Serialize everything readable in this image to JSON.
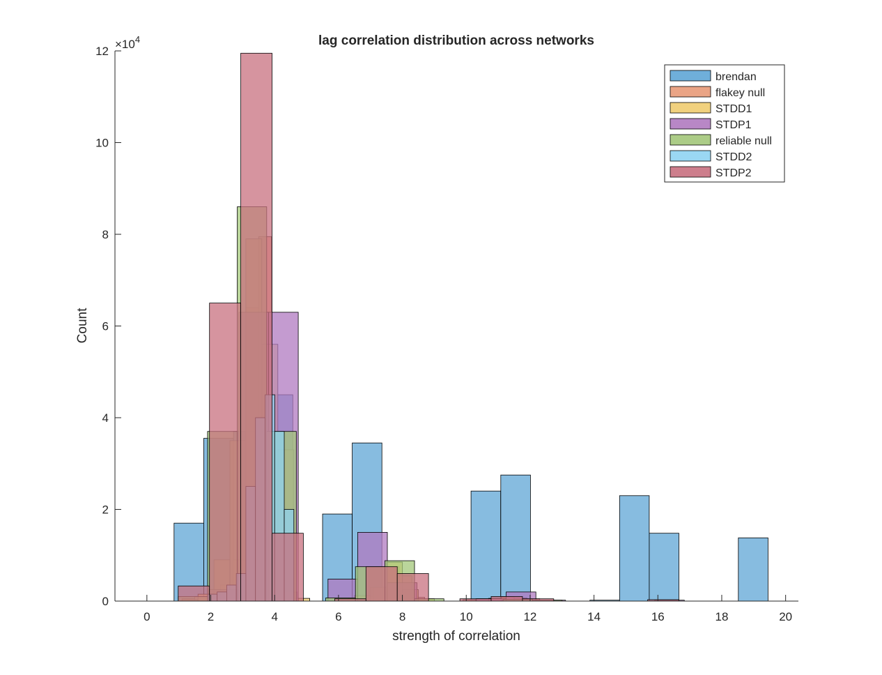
{
  "chart_data": {
    "type": "bar",
    "title": "lag correlation distribution across networks",
    "xlabel": "strength of correlation",
    "ylabel": "Count",
    "y_exponent_label": "×10",
    "y_exponent_power": "4",
    "xlim": [
      -1,
      20.4
    ],
    "ylim": [
      0,
      120000
    ],
    "xticks": [
      0,
      2,
      4,
      6,
      8,
      10,
      12,
      14,
      16,
      18,
      20
    ],
    "yticks": [
      0,
      20000,
      40000,
      60000,
      80000,
      100000,
      120000
    ],
    "xtick_labels": [
      "0",
      "2",
      "4",
      "6",
      "8",
      "10",
      "12",
      "14",
      "16",
      "18",
      "20"
    ],
    "ytick_labels": [
      "0",
      "2",
      "4",
      "6",
      "8",
      "10",
      "12"
    ],
    "legend_position": "top-right",
    "series": [
      {
        "name": "brendan",
        "color": "#0072BD",
        "face": "#5fa6d6",
        "bins": [
          [
            0.0,
            0.8,
            0
          ],
          [
            0.85,
            1.78,
            17000
          ],
          [
            1.78,
            2.71,
            35500
          ],
          [
            2.71,
            3.64,
            37000
          ],
          [
            3.64,
            4.57,
            45000
          ],
          [
            4.57,
            5.5,
            0
          ],
          [
            5.5,
            6.43,
            19000
          ],
          [
            6.43,
            7.36,
            34500
          ],
          [
            7.36,
            8.29,
            0
          ],
          [
            8.29,
            9.22,
            0
          ],
          [
            9.22,
            10.15,
            0
          ],
          [
            10.15,
            11.08,
            24000
          ],
          [
            11.08,
            12.01,
            27500
          ],
          [
            12.01,
            12.94,
            0
          ],
          [
            12.94,
            13.87,
            0
          ],
          [
            13.87,
            14.8,
            200
          ],
          [
            14.8,
            15.73,
            23000
          ],
          [
            15.73,
            16.66,
            14800
          ],
          [
            16.66,
            17.59,
            0
          ],
          [
            17.59,
            18.52,
            0
          ],
          [
            18.52,
            19.45,
            13800
          ]
        ]
      },
      {
        "name": "flakey null",
        "color": "#D95319",
        "face": "#e89a78",
        "bins": [
          [
            1.1,
            1.5,
            500
          ],
          [
            1.5,
            1.9,
            1000
          ],
          [
            1.9,
            2.3,
            1200
          ],
          [
            2.3,
            2.7,
            3500
          ],
          [
            2.7,
            3.1,
            9000
          ],
          [
            3.1,
            3.5,
            64000
          ],
          [
            3.5,
            3.9,
            79500
          ],
          [
            3.9,
            4.3,
            29000
          ],
          [
            4.3,
            4.7,
            2000
          ],
          [
            4.7,
            5.1,
            0
          ],
          [
            5.9,
            6.3,
            300
          ],
          [
            6.3,
            6.7,
            600
          ],
          [
            6.7,
            7.1,
            1000
          ],
          [
            7.1,
            7.5,
            3000
          ],
          [
            7.5,
            7.9,
            7500
          ],
          [
            7.9,
            8.3,
            5500
          ],
          [
            8.3,
            8.7,
            800
          ],
          [
            9.9,
            10.3,
            300
          ],
          [
            10.3,
            10.7,
            500
          ],
          [
            10.7,
            11.1,
            600
          ],
          [
            11.1,
            11.5,
            900
          ],
          [
            11.5,
            11.9,
            700
          ],
          [
            11.9,
            12.3,
            500
          ]
        ]
      },
      {
        "name": "STDD1",
        "color": "#EDB120",
        "face": "#f0cc70",
        "bins": [
          [
            1.1,
            1.6,
            300
          ],
          [
            1.6,
            2.1,
            1500
          ],
          [
            2.1,
            2.6,
            9000
          ],
          [
            2.6,
            3.1,
            35000
          ],
          [
            3.1,
            3.6,
            79000
          ],
          [
            3.6,
            4.1,
            56000
          ],
          [
            4.1,
            4.6,
            33000
          ],
          [
            4.6,
            5.1,
            600
          ],
          [
            6.0,
            6.5,
            300
          ],
          [
            6.5,
            7.0,
            1200
          ],
          [
            7.0,
            7.5,
            3000
          ],
          [
            7.5,
            8.0,
            8500
          ],
          [
            8.0,
            8.5,
            2500
          ],
          [
            8.5,
            9.0,
            500
          ]
        ]
      },
      {
        "name": "STDP1",
        "color": "#7E2F8E",
        "face": "#b07ac0",
        "bins": [
          [
            1.95,
            2.88,
            2500
          ],
          [
            2.88,
            3.81,
            63000
          ],
          [
            3.81,
            4.74,
            63000
          ],
          [
            4.74,
            5.67,
            0
          ],
          [
            5.67,
            6.6,
            4800
          ],
          [
            6.6,
            7.53,
            15000
          ],
          [
            7.53,
            8.46,
            4000
          ],
          [
            8.46,
            9.39,
            0
          ],
          [
            9.39,
            10.32,
            0
          ],
          [
            10.32,
            11.25,
            500
          ],
          [
            11.25,
            12.18,
            2000
          ],
          [
            12.18,
            13.11,
            200
          ],
          [
            13.11,
            14.04,
            0
          ],
          [
            14.04,
            14.97,
            0
          ],
          [
            14.97,
            15.9,
            0
          ],
          [
            15.9,
            16.83,
            200
          ]
        ]
      },
      {
        "name": "reliable null",
        "color": "#77AC30",
        "face": "#a3c77a",
        "bins": [
          [
            0.98,
            1.9,
            1000
          ],
          [
            1.9,
            2.83,
            37000
          ],
          [
            2.83,
            3.75,
            86000
          ],
          [
            3.75,
            4.68,
            37000
          ],
          [
            4.68,
            5.6,
            0
          ],
          [
            5.6,
            6.53,
            700
          ],
          [
            6.53,
            7.45,
            7500
          ],
          [
            7.45,
            8.38,
            8800
          ],
          [
            8.38,
            9.3,
            500
          ],
          [
            9.3,
            10.23,
            0
          ],
          [
            10.23,
            11.15,
            0
          ],
          [
            11.15,
            12.08,
            400
          ],
          [
            12.08,
            13.0,
            200
          ]
        ]
      },
      {
        "name": "STDD2",
        "color": "#4DBEEE",
        "face": "#8fd3f2",
        "bins": [
          [
            1.9,
            2.2,
            1500
          ],
          [
            2.2,
            2.5,
            2000
          ],
          [
            2.5,
            2.8,
            3500
          ],
          [
            2.8,
            3.1,
            6000
          ],
          [
            3.1,
            3.4,
            25000
          ],
          [
            3.4,
            3.7,
            40000
          ],
          [
            3.7,
            4.0,
            45000
          ],
          [
            4.0,
            4.3,
            37000
          ],
          [
            4.3,
            4.6,
            20000
          ]
        ]
      },
      {
        "name": "STDP2",
        "color": "#A2142F",
        "face": "#c8707f",
        "bins": [
          [
            0.0,
            0.98,
            0
          ],
          [
            0.98,
            1.96,
            3300
          ],
          [
            1.96,
            2.94,
            65000
          ],
          [
            2.94,
            3.92,
            119500
          ],
          [
            3.92,
            4.9,
            14800
          ],
          [
            4.9,
            5.88,
            0
          ],
          [
            5.88,
            6.86,
            500
          ],
          [
            6.86,
            7.84,
            7500
          ],
          [
            7.84,
            8.82,
            6000
          ],
          [
            8.82,
            9.8,
            0
          ],
          [
            9.8,
            10.78,
            500
          ],
          [
            10.78,
            11.76,
            1000
          ],
          [
            11.76,
            12.74,
            500
          ],
          [
            12.74,
            13.72,
            0
          ],
          [
            13.72,
            14.7,
            0
          ],
          [
            14.7,
            15.68,
            0
          ],
          [
            15.68,
            16.66,
            300
          ]
        ]
      }
    ]
  }
}
